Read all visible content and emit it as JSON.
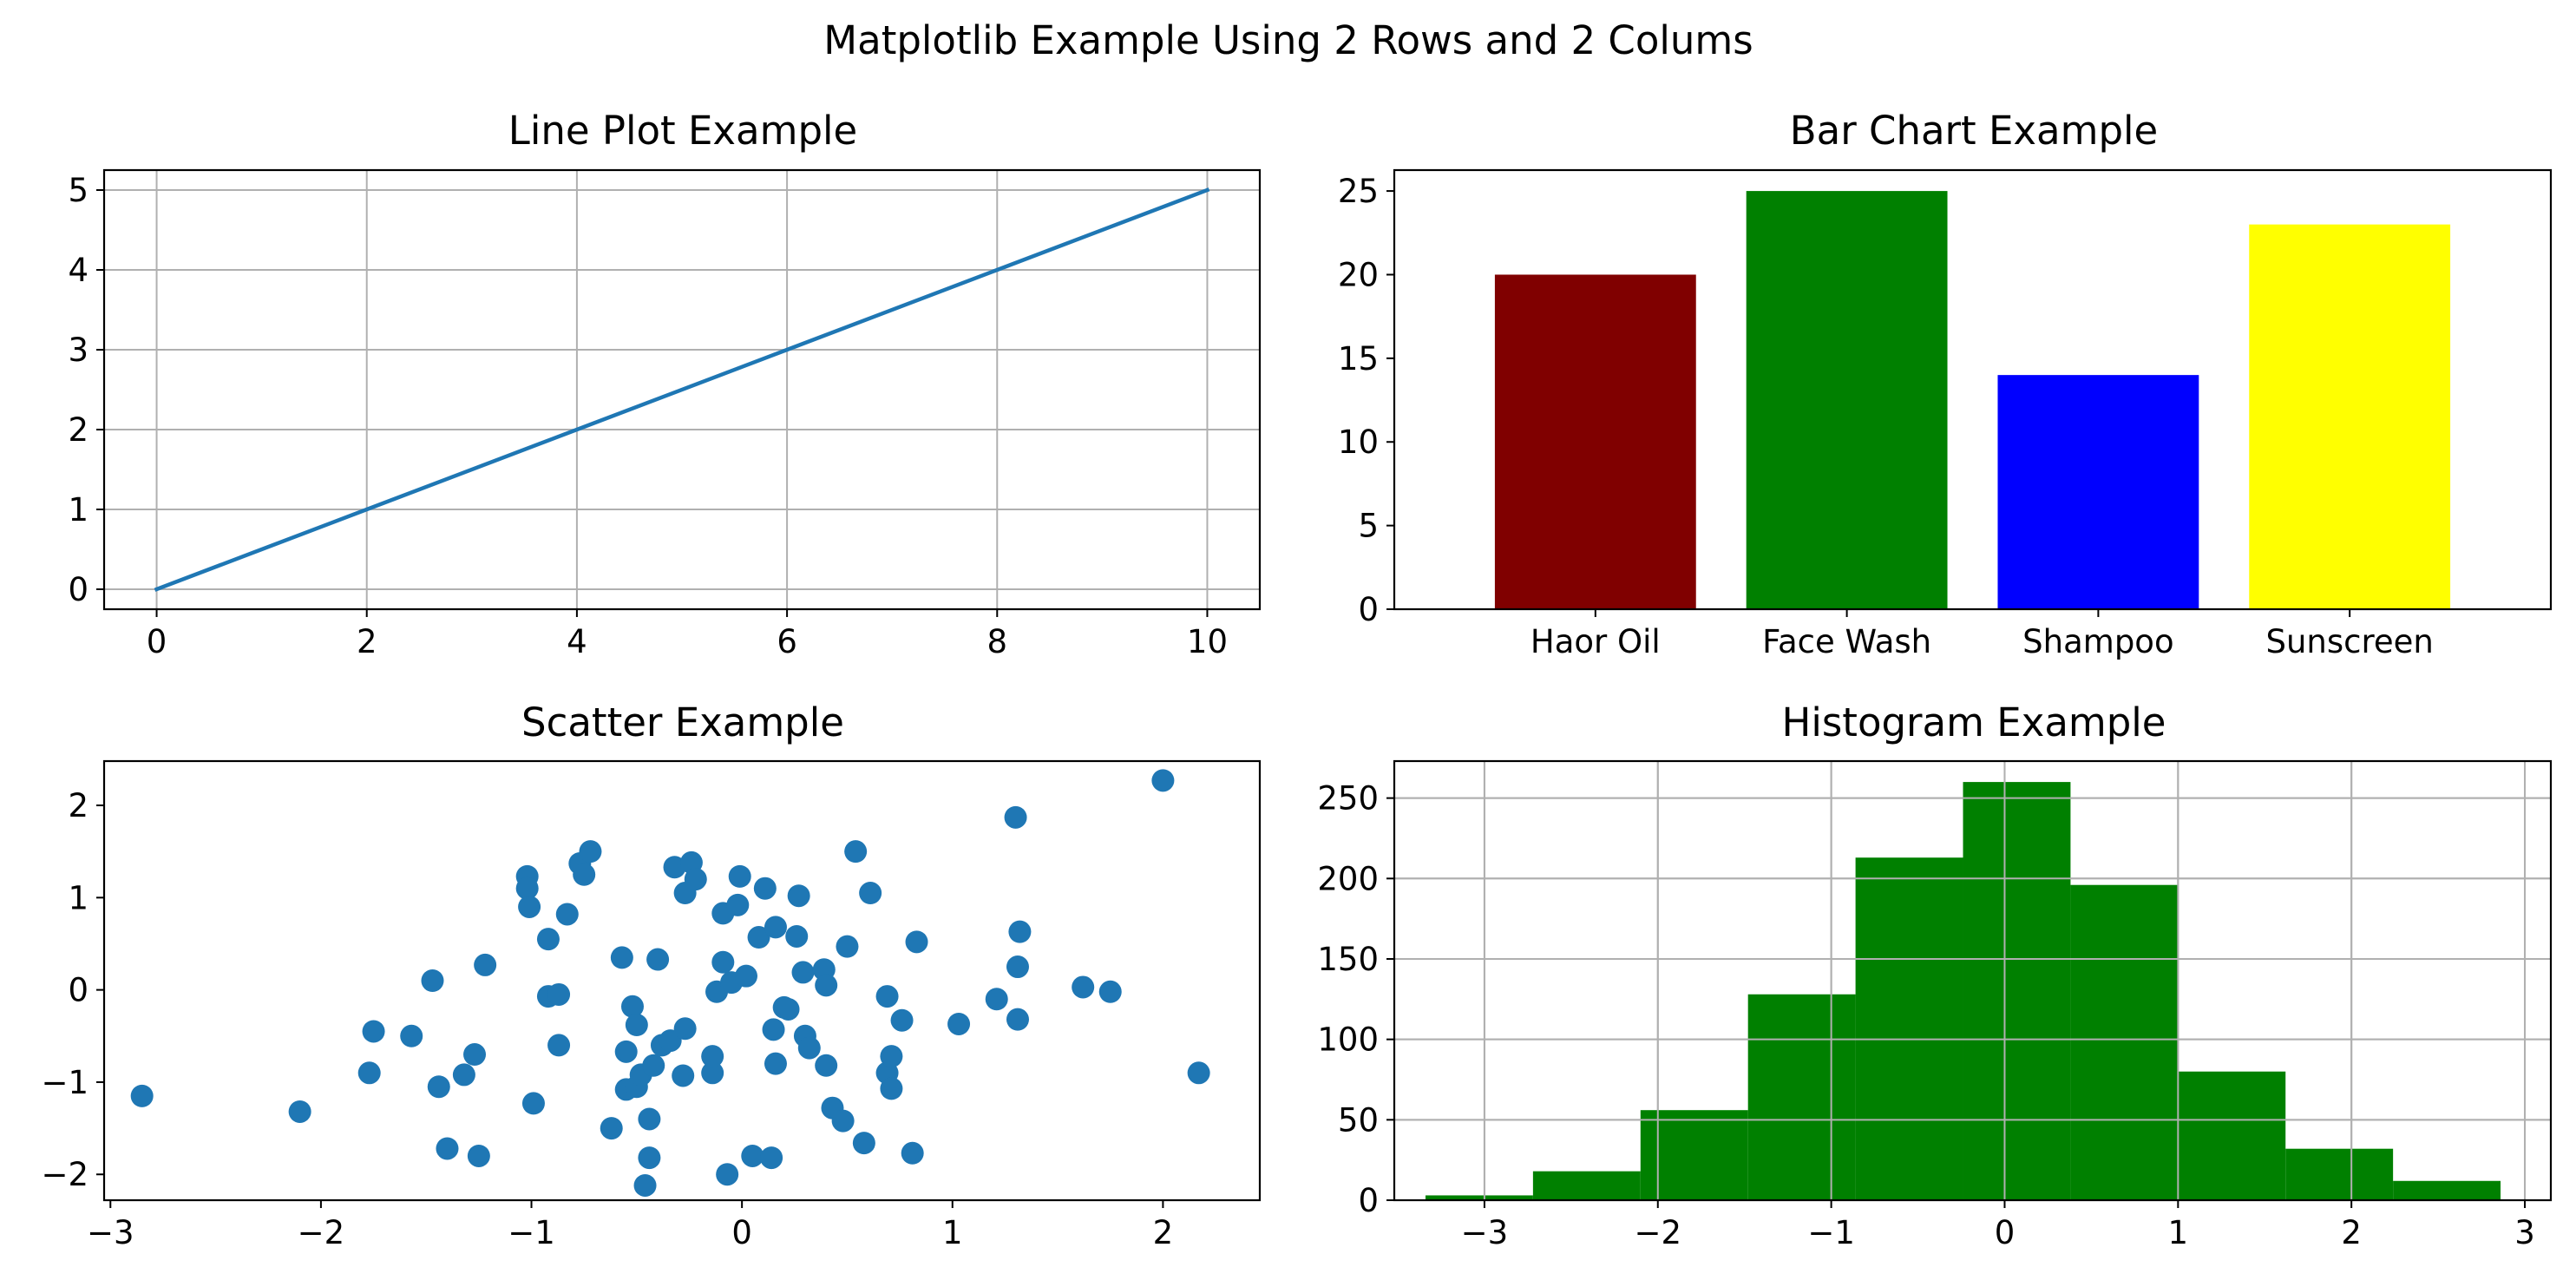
{
  "figure_title": "Matplotlib Example Using 2 Rows and 2 Colums",
  "colors": {
    "line": "#1f77b4",
    "scatter": "#1f77b4",
    "histogram": "#008000",
    "grid": "#b0b0b0",
    "axes": "#000000"
  },
  "chart_data": [
    {
      "type": "line",
      "title": "Line Plot Example",
      "xlabel": "",
      "ylabel": "",
      "grid": true,
      "xlim": [
        -0.5,
        10.5
      ],
      "ylim": [
        -0.25,
        5.25
      ],
      "xticks": [
        0,
        2,
        4,
        6,
        8,
        10
      ],
      "yticks": [
        0,
        1,
        2,
        3,
        4,
        5
      ],
      "series": [
        {
          "x": [
            0,
            2,
            4,
            6,
            8,
            10
          ],
          "y": [
            0,
            1,
            2,
            3,
            4,
            5
          ]
        }
      ]
    },
    {
      "type": "bar",
      "title": "Bar Chart Example",
      "xlabel": "",
      "ylabel": "",
      "grid": false,
      "ylim": [
        0,
        26.25
      ],
      "yticks": [
        0,
        5,
        10,
        15,
        20,
        25
      ],
      "categories": [
        "Haor Oil",
        "Face Wash",
        "Shampoo",
        "Sunscreen"
      ],
      "values": [
        20,
        25,
        14,
        23
      ],
      "bar_colors": [
        "#800000",
        "#008000",
        "#0000ff",
        "#ffff00"
      ]
    },
    {
      "type": "scatter",
      "title": "Scatter Example",
      "xlabel": "",
      "ylabel": "",
      "grid": false,
      "xlim": [
        -3.03,
        2.46
      ],
      "ylim": [
        -2.28,
        2.48
      ],
      "xticks": [
        -3,
        -2,
        -1,
        0,
        1,
        2
      ],
      "yticks": [
        -2,
        -1,
        0,
        1,
        2
      ],
      "points": [
        [
          -2.85,
          -1.15
        ],
        [
          -2.1,
          -1.32
        ],
        [
          -1.75,
          -0.45
        ],
        [
          -1.77,
          -0.9
        ],
        [
          -1.57,
          -0.5
        ],
        [
          -1.47,
          0.1
        ],
        [
          -1.44,
          -1.05
        ],
        [
          -1.4,
          -1.72
        ],
        [
          -1.32,
          -0.92
        ],
        [
          -1.27,
          -0.7
        ],
        [
          -1.25,
          -1.8
        ],
        [
          -1.22,
          0.27
        ],
        [
          -1.02,
          1.23
        ],
        [
          -1.02,
          1.1
        ],
        [
          -1.01,
          0.9
        ],
        [
          -0.99,
          -1.23
        ],
        [
          -0.92,
          0.55
        ],
        [
          -0.92,
          -0.07
        ],
        [
          -0.87,
          -0.05
        ],
        [
          -0.87,
          -0.6
        ],
        [
          -0.83,
          0.82
        ],
        [
          -0.77,
          1.37
        ],
        [
          -0.75,
          1.25
        ],
        [
          -0.72,
          1.5
        ],
        [
          -0.62,
          -1.5
        ],
        [
          -0.57,
          0.35
        ],
        [
          -0.55,
          -0.67
        ],
        [
          -0.55,
          -1.08
        ],
        [
          -0.52,
          -0.18
        ],
        [
          -0.5,
          -1.05
        ],
        [
          -0.5,
          -0.38
        ],
        [
          -0.48,
          -0.92
        ],
        [
          -0.46,
          -2.12
        ],
        [
          -0.44,
          -1.82
        ],
        [
          -0.44,
          -1.4
        ],
        [
          -0.42,
          -0.82
        ],
        [
          -0.4,
          0.33
        ],
        [
          -0.38,
          -0.6
        ],
        [
          -0.34,
          -0.55
        ],
        [
          -0.32,
          1.33
        ],
        [
          -0.28,
          -0.93
        ],
        [
          -0.27,
          -0.42
        ],
        [
          -0.27,
          1.05
        ],
        [
          -0.24,
          1.38
        ],
        [
          -0.22,
          1.2
        ],
        [
          -0.14,
          -0.9
        ],
        [
          -0.14,
          -0.72
        ],
        [
          -0.12,
          -0.02
        ],
        [
          -0.09,
          0.3
        ],
        [
          -0.09,
          0.83
        ],
        [
          -0.07,
          -2.0
        ],
        [
          -0.05,
          0.08
        ],
        [
          -0.02,
          0.92
        ],
        [
          -0.01,
          1.23
        ],
        [
          0.02,
          0.15
        ],
        [
          0.05,
          -1.8
        ],
        [
          0.08,
          0.57
        ],
        [
          0.11,
          1.1
        ],
        [
          0.14,
          -1.82
        ],
        [
          0.15,
          -0.43
        ],
        [
          0.16,
          0.68
        ],
        [
          0.16,
          -0.8
        ],
        [
          0.2,
          -0.19
        ],
        [
          0.22,
          -0.21
        ],
        [
          0.26,
          0.58
        ],
        [
          0.27,
          1.02
        ],
        [
          0.29,
          0.19
        ],
        [
          0.3,
          -0.5
        ],
        [
          0.32,
          -0.63
        ],
        [
          0.39,
          0.22
        ],
        [
          0.4,
          0.05
        ],
        [
          0.4,
          -0.82
        ],
        [
          0.43,
          -1.28
        ],
        [
          0.48,
          -1.42
        ],
        [
          0.5,
          0.47
        ],
        [
          0.54,
          1.5
        ],
        [
          0.58,
          -1.66
        ],
        [
          0.61,
          1.05
        ],
        [
          0.69,
          -0.07
        ],
        [
          0.69,
          -0.9
        ],
        [
          0.71,
          -0.72
        ],
        [
          0.71,
          -1.07
        ],
        [
          0.76,
          -0.33
        ],
        [
          0.81,
          -1.77
        ],
        [
          0.83,
          0.52
        ],
        [
          1.03,
          -0.37
        ],
        [
          1.21,
          -0.1
        ],
        [
          1.3,
          1.87
        ],
        [
          1.31,
          0.25
        ],
        [
          1.31,
          -0.32
        ],
        [
          1.32,
          0.63
        ],
        [
          1.62,
          0.03
        ],
        [
          1.75,
          -0.02
        ],
        [
          2.0,
          2.27
        ],
        [
          2.17,
          -0.9
        ]
      ]
    },
    {
      "type": "histogram",
      "title": "Histogram Example",
      "xlabel": "",
      "ylabel": "",
      "grid": true,
      "xlim": [
        -3.52,
        3.15
      ],
      "ylim": [
        0,
        273
      ],
      "xticks": [
        -3,
        -2,
        -1,
        0,
        1,
        2,
        3
      ],
      "yticks": [
        0,
        50,
        100,
        150,
        200,
        250
      ],
      "bin_edges": [
        -3.34,
        -2.72,
        -2.1,
        -1.48,
        -0.86,
        -0.24,
        0.38,
        1.0,
        1.62,
        2.24,
        2.86
      ],
      "counts": [
        3,
        18,
        56,
        128,
        213,
        260,
        196,
        80,
        32,
        12
      ]
    }
  ]
}
